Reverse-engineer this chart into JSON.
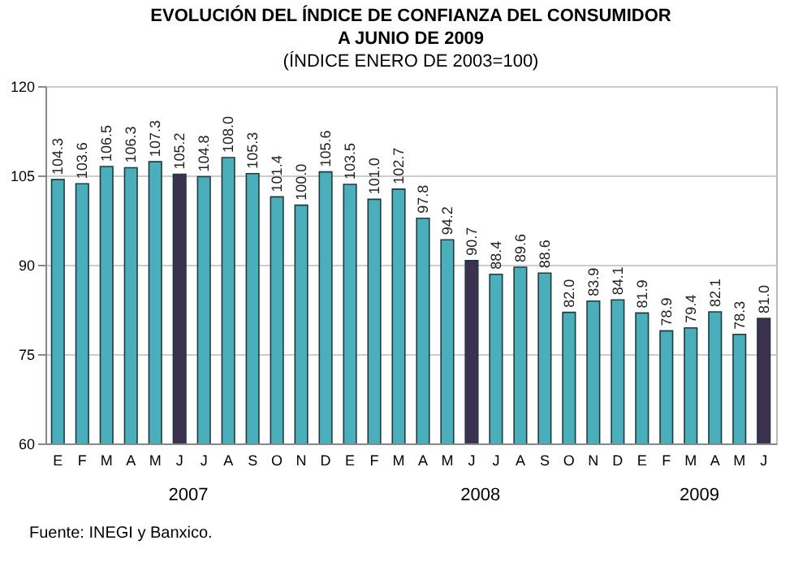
{
  "chart_data": {
    "type": "bar",
    "title": "EVOLUCIÓN DEL ÍNDICE DE CONFIANZA DEL CONSUMIDOR A JUNIO DE 2009",
    "subtitle": "(ÍNDICE ENERO DE 2003=100)",
    "categories": [
      "E",
      "F",
      "M",
      "A",
      "M",
      "J",
      "J",
      "A",
      "S",
      "O",
      "N",
      "D",
      "E",
      "F",
      "M",
      "A",
      "M",
      "J",
      "J",
      "A",
      "S",
      "O",
      "N",
      "D",
      "E",
      "F",
      "M",
      "A",
      "M",
      "J"
    ],
    "values": [
      104.3,
      103.6,
      106.5,
      106.3,
      107.3,
      105.2,
      104.8,
      108.0,
      105.3,
      101.4,
      100.0,
      105.6,
      103.5,
      101.0,
      102.7,
      97.8,
      94.2,
      90.7,
      88.4,
      89.6,
      88.6,
      82.0,
      83.9,
      84.1,
      81.9,
      78.9,
      79.4,
      82.1,
      78.3,
      81.0
    ],
    "value_labels": [
      "104.3",
      "103.6",
      "106.5",
      "106.3",
      "107.3",
      "105.2",
      "104.8",
      "108.0",
      "105.3",
      "101.4",
      "100.0",
      "105.6",
      "103.5",
      "101.0",
      "102.7",
      "97.8",
      "94.2",
      "90.7",
      "88.4",
      "89.6",
      "88.6",
      "82.0",
      "83.9",
      "84.1",
      "81.9",
      "78.9",
      "79.4",
      "82.1",
      "78.3",
      "81.0"
    ],
    "colors": [
      "#4aaebb",
      "#4aaebb",
      "#4aaebb",
      "#4aaebb",
      "#4aaebb",
      "#3d3150",
      "#4aaebb",
      "#4aaebb",
      "#4aaebb",
      "#4aaebb",
      "#4aaebb",
      "#4aaebb",
      "#4aaebb",
      "#4aaebb",
      "#4aaebb",
      "#4aaebb",
      "#4aaebb",
      "#3d3150",
      "#4aaebb",
      "#4aaebb",
      "#4aaebb",
      "#4aaebb",
      "#4aaebb",
      "#4aaebb",
      "#4aaebb",
      "#4aaebb",
      "#4aaebb",
      "#4aaebb",
      "#4aaebb",
      "#3d3150"
    ],
    "ylim": [
      60,
      120
    ],
    "yticks": [
      60,
      75,
      90,
      105,
      120
    ],
    "grid": "y",
    "annotations": [
      "2007",
      "2008",
      "2009",
      "Fuente: INEGI y Banxico."
    ]
  }
}
